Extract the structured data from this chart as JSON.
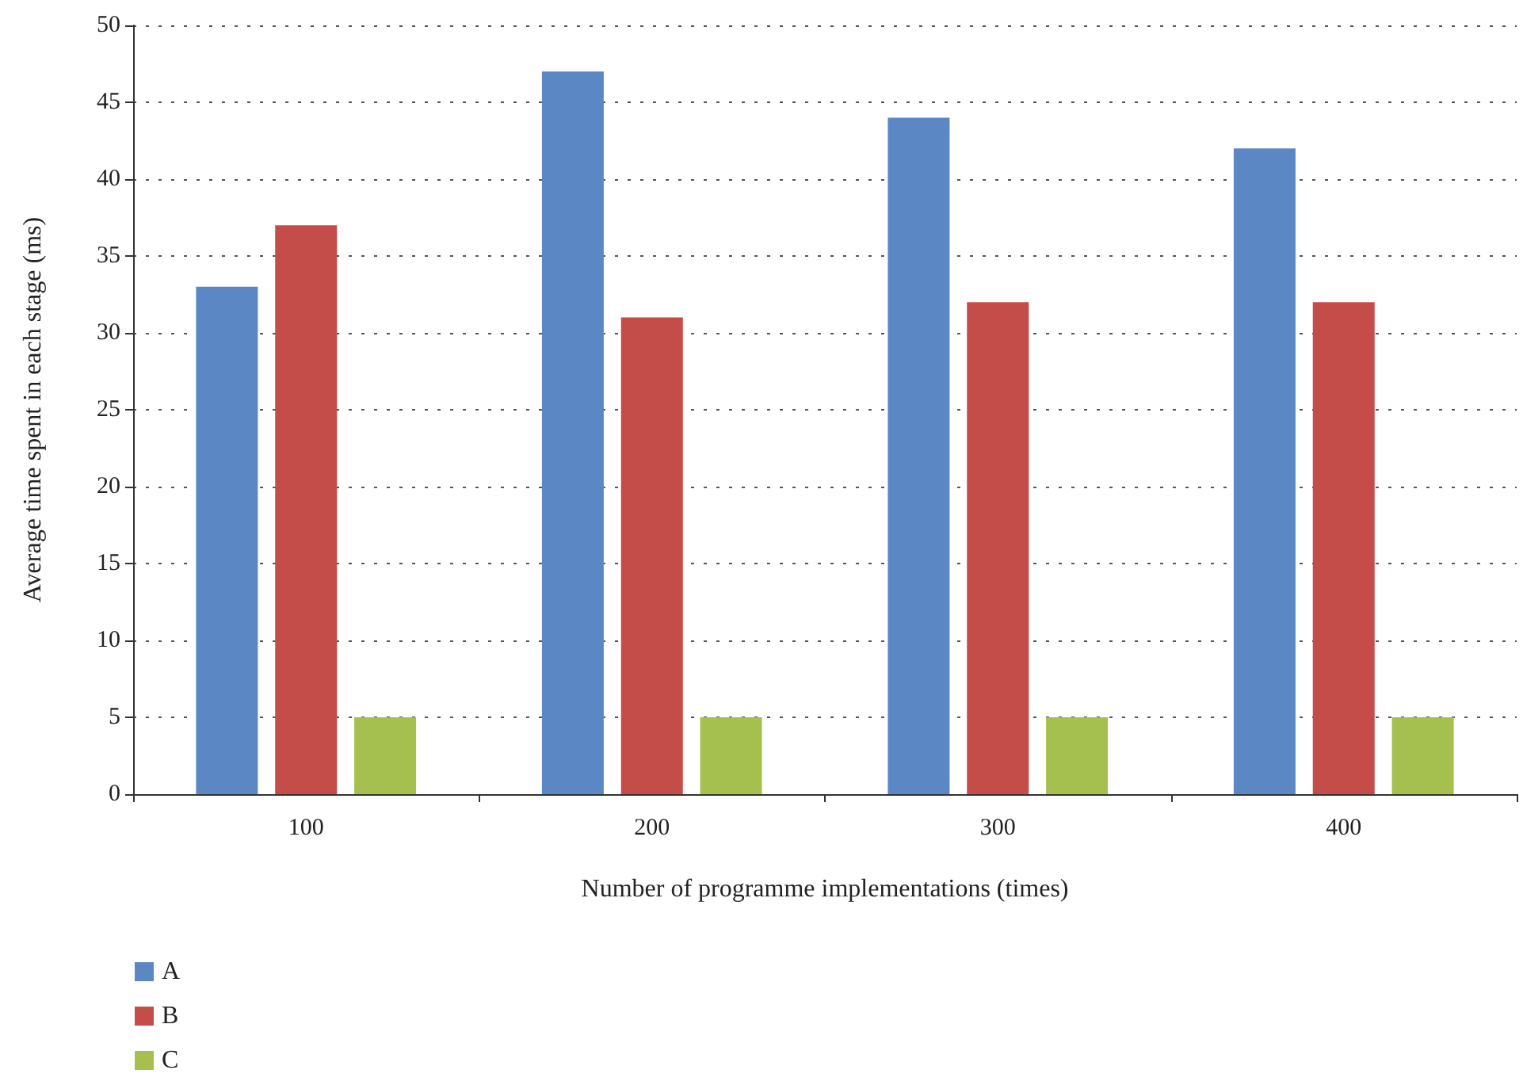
{
  "chart_data": {
    "type": "bar",
    "xlabel": "Number of programme implementations (times)",
    "ylabel": "Average time spent in each stage (ms)",
    "categories": [
      "100",
      "200",
      "300",
      "400"
    ],
    "series": [
      {
        "name": "A",
        "color": "#5b87c5",
        "values": [
          33,
          47,
          44,
          42
        ]
      },
      {
        "name": "B",
        "color": "#c44d4a",
        "values": [
          37,
          31,
          32,
          32
        ]
      },
      {
        "name": "C",
        "color": "#a5c04e",
        "values": [
          5,
          5,
          5,
          5
        ]
      }
    ],
    "ylim": [
      0,
      50
    ],
    "yticks": [
      0,
      5,
      10,
      15,
      20,
      25,
      30,
      35,
      40,
      45,
      50
    ],
    "grid": "y",
    "legend": "bottom left"
  }
}
